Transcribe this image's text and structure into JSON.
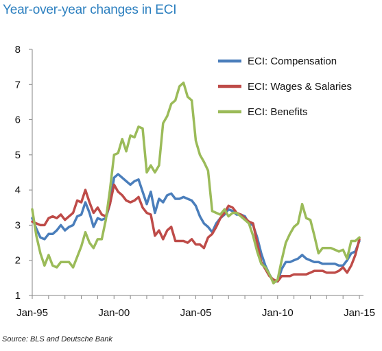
{
  "chart_data": {
    "type": "line",
    "title": "Year-over-year changes in ECI",
    "xlabel": "",
    "ylabel": "",
    "source": "Source: BLS and Deutsche Bank",
    "x_range": [
      "1995-01",
      "2015-04"
    ],
    "ylim": [
      1,
      8
    ],
    "y_ticks": [
      "1",
      "2",
      "3",
      "4",
      "5",
      "6",
      "7",
      "8"
    ],
    "x_ticks": [
      {
        "label": "Jan-95",
        "t": "1995-01"
      },
      {
        "label": "Jan-00",
        "t": "2000-01"
      },
      {
        "label": "Jan-05",
        "t": "2005-01"
      },
      {
        "label": "Jan-10",
        "t": "2010-01"
      },
      {
        "label": "Jan-15",
        "t": "2015-01"
      }
    ],
    "grid": false,
    "legend_position": "top-right",
    "series": [
      {
        "name": "ECI: Compensation",
        "color": "#4a7ebb",
        "points": [
          [
            "1995-01",
            3.2
          ],
          [
            "1995-04",
            2.9
          ],
          [
            "1995-07",
            2.65
          ],
          [
            "1995-10",
            2.6
          ],
          [
            "1996-01",
            2.75
          ],
          [
            "1996-04",
            2.75
          ],
          [
            "1996-07",
            2.85
          ],
          [
            "1996-10",
            3.0
          ],
          [
            "1997-01",
            2.85
          ],
          [
            "1997-04",
            2.95
          ],
          [
            "1997-07",
            3.0
          ],
          [
            "1997-10",
            3.25
          ],
          [
            "1998-01",
            3.3
          ],
          [
            "1998-04",
            3.65
          ],
          [
            "1998-07",
            3.35
          ],
          [
            "1998-10",
            2.95
          ],
          [
            "1999-01",
            3.2
          ],
          [
            "1999-04",
            3.15
          ],
          [
            "1999-07",
            3.2
          ],
          [
            "1999-10",
            3.6
          ],
          [
            "2000-01",
            4.35
          ],
          [
            "2000-04",
            4.45
          ],
          [
            "2000-07",
            4.35
          ],
          [
            "2000-10",
            4.25
          ],
          [
            "2001-01",
            4.15
          ],
          [
            "2001-04",
            4.25
          ],
          [
            "2001-07",
            4.3
          ],
          [
            "2001-10",
            3.95
          ],
          [
            "2002-01",
            3.6
          ],
          [
            "2002-04",
            3.95
          ],
          [
            "2002-07",
            3.35
          ],
          [
            "2002-10",
            3.75
          ],
          [
            "2003-01",
            3.65
          ],
          [
            "2003-04",
            3.85
          ],
          [
            "2003-07",
            3.9
          ],
          [
            "2003-10",
            3.75
          ],
          [
            "2004-01",
            3.75
          ],
          [
            "2004-04",
            3.8
          ],
          [
            "2004-07",
            3.75
          ],
          [
            "2004-10",
            3.7
          ],
          [
            "2005-01",
            3.55
          ],
          [
            "2005-04",
            3.25
          ],
          [
            "2005-07",
            3.05
          ],
          [
            "2005-10",
            2.95
          ],
          [
            "2006-01",
            2.8
          ],
          [
            "2006-04",
            3.05
          ],
          [
            "2006-07",
            3.2
          ],
          [
            "2006-10",
            3.3
          ],
          [
            "2007-01",
            3.45
          ],
          [
            "2007-04",
            3.4
          ],
          [
            "2007-07",
            3.3
          ],
          [
            "2007-10",
            3.3
          ],
          [
            "2008-01",
            3.25
          ],
          [
            "2008-04",
            3.05
          ],
          [
            "2008-07",
            3.0
          ],
          [
            "2008-10",
            2.65
          ],
          [
            "2009-01",
            2.2
          ],
          [
            "2009-04",
            1.85
          ],
          [
            "2009-07",
            1.6
          ],
          [
            "2009-10",
            1.4
          ],
          [
            "2010-01",
            1.4
          ],
          [
            "2010-04",
            1.75
          ],
          [
            "2010-07",
            1.95
          ],
          [
            "2010-10",
            1.95
          ],
          [
            "2011-01",
            2.0
          ],
          [
            "2011-04",
            2.05
          ],
          [
            "2011-07",
            2.15
          ],
          [
            "2011-10",
            2.05
          ],
          [
            "2012-01",
            2.0
          ],
          [
            "2012-04",
            1.95
          ],
          [
            "2012-07",
            1.95
          ],
          [
            "2012-10",
            1.9
          ],
          [
            "2013-01",
            1.9
          ],
          [
            "2013-04",
            1.9
          ],
          [
            "2013-07",
            1.9
          ],
          [
            "2013-10",
            1.85
          ],
          [
            "2014-01",
            1.85
          ],
          [
            "2014-04",
            2.0
          ],
          [
            "2014-07",
            2.2
          ],
          [
            "2014-10",
            2.25
          ],
          [
            "2015-01",
            2.55
          ]
        ]
      },
      {
        "name": "ECI: Wages & Salaries",
        "color": "#be4b48",
        "points": [
          [
            "1995-01",
            3.1
          ],
          [
            "1995-04",
            3.05
          ],
          [
            "1995-07",
            3.0
          ],
          [
            "1995-10",
            3.0
          ],
          [
            "1996-01",
            3.2
          ],
          [
            "1996-04",
            3.25
          ],
          [
            "1996-07",
            3.2
          ],
          [
            "1996-10",
            3.3
          ],
          [
            "1997-01",
            3.15
          ],
          [
            "1997-04",
            3.25
          ],
          [
            "1997-07",
            3.35
          ],
          [
            "1997-10",
            3.7
          ],
          [
            "1998-01",
            3.65
          ],
          [
            "1998-04",
            4.0
          ],
          [
            "1998-07",
            3.65
          ],
          [
            "1998-10",
            3.35
          ],
          [
            "1999-01",
            3.5
          ],
          [
            "1999-04",
            3.3
          ],
          [
            "1999-07",
            3.25
          ],
          [
            "1999-10",
            3.6
          ],
          [
            "2000-01",
            4.15
          ],
          [
            "2000-04",
            3.95
          ],
          [
            "2000-07",
            3.85
          ],
          [
            "2000-10",
            3.7
          ],
          [
            "2001-01",
            3.65
          ],
          [
            "2001-04",
            3.7
          ],
          [
            "2001-07",
            3.8
          ],
          [
            "2001-10",
            3.5
          ],
          [
            "2002-01",
            3.35
          ],
          [
            "2002-04",
            3.3
          ],
          [
            "2002-07",
            2.7
          ],
          [
            "2002-10",
            2.85
          ],
          [
            "2003-01",
            2.6
          ],
          [
            "2003-04",
            2.85
          ],
          [
            "2003-07",
            2.95
          ],
          [
            "2003-10",
            2.55
          ],
          [
            "2004-01",
            2.55
          ],
          [
            "2004-04",
            2.55
          ],
          [
            "2004-07",
            2.5
          ],
          [
            "2004-10",
            2.6
          ],
          [
            "2005-01",
            2.45
          ],
          [
            "2005-04",
            2.45
          ],
          [
            "2005-07",
            2.35
          ],
          [
            "2005-10",
            2.65
          ],
          [
            "2006-01",
            2.75
          ],
          [
            "2006-04",
            2.95
          ],
          [
            "2006-07",
            3.2
          ],
          [
            "2006-10",
            3.35
          ],
          [
            "2007-01",
            3.55
          ],
          [
            "2007-04",
            3.5
          ],
          [
            "2007-07",
            3.35
          ],
          [
            "2007-10",
            3.3
          ],
          [
            "2008-01",
            3.2
          ],
          [
            "2008-04",
            3.1
          ],
          [
            "2008-07",
            3.05
          ],
          [
            "2008-10",
            2.5
          ],
          [
            "2009-01",
            1.95
          ],
          [
            "2009-04",
            1.75
          ],
          [
            "2009-07",
            1.55
          ],
          [
            "2009-10",
            1.45
          ],
          [
            "2010-01",
            1.4
          ],
          [
            "2010-04",
            1.55
          ],
          [
            "2010-07",
            1.55
          ],
          [
            "2010-10",
            1.55
          ],
          [
            "2011-01",
            1.6
          ],
          [
            "2011-04",
            1.6
          ],
          [
            "2011-07",
            1.6
          ],
          [
            "2011-10",
            1.6
          ],
          [
            "2012-01",
            1.65
          ],
          [
            "2012-04",
            1.7
          ],
          [
            "2012-07",
            1.7
          ],
          [
            "2012-10",
            1.7
          ],
          [
            "2013-01",
            1.65
          ],
          [
            "2013-04",
            1.65
          ],
          [
            "2013-07",
            1.65
          ],
          [
            "2013-10",
            1.7
          ],
          [
            "2014-01",
            1.8
          ],
          [
            "2014-04",
            1.65
          ],
          [
            "2014-07",
            1.85
          ],
          [
            "2014-10",
            2.15
          ],
          [
            "2015-01",
            2.6
          ]
        ]
      },
      {
        "name": "ECI: Benefits",
        "color": "#9bbb59",
        "points": [
          [
            "1995-01",
            3.45
          ],
          [
            "1995-04",
            2.7
          ],
          [
            "1995-07",
            2.2
          ],
          [
            "1995-10",
            1.85
          ],
          [
            "1996-01",
            2.15
          ],
          [
            "1996-04",
            1.85
          ],
          [
            "1996-07",
            1.8
          ],
          [
            "1996-10",
            1.95
          ],
          [
            "1997-01",
            1.95
          ],
          [
            "1997-04",
            1.95
          ],
          [
            "1997-07",
            1.8
          ],
          [
            "1997-10",
            2.1
          ],
          [
            "1998-01",
            2.4
          ],
          [
            "1998-04",
            2.8
          ],
          [
            "1998-07",
            2.5
          ],
          [
            "1998-10",
            2.35
          ],
          [
            "1999-01",
            2.6
          ],
          [
            "1999-04",
            2.6
          ],
          [
            "1999-07",
            3.15
          ],
          [
            "1999-10",
            4.0
          ],
          [
            "2000-01",
            5.0
          ],
          [
            "2000-04",
            5.05
          ],
          [
            "2000-07",
            5.45
          ],
          [
            "2000-10",
            5.1
          ],
          [
            "2001-01",
            5.55
          ],
          [
            "2001-04",
            5.5
          ],
          [
            "2001-07",
            5.8
          ],
          [
            "2001-10",
            5.75
          ],
          [
            "2002-01",
            4.5
          ],
          [
            "2002-04",
            4.7
          ],
          [
            "2002-07",
            4.5
          ],
          [
            "2002-10",
            4.7
          ],
          [
            "2003-01",
            5.9
          ],
          [
            "2003-04",
            6.1
          ],
          [
            "2003-07",
            6.45
          ],
          [
            "2003-10",
            6.55
          ],
          [
            "2004-01",
            6.95
          ],
          [
            "2004-04",
            7.05
          ],
          [
            "2004-07",
            6.65
          ],
          [
            "2004-10",
            6.55
          ],
          [
            "2005-01",
            5.4
          ],
          [
            "2005-04",
            5.0
          ],
          [
            "2005-07",
            4.8
          ],
          [
            "2005-10",
            4.55
          ],
          [
            "2006-01",
            3.4
          ],
          [
            "2006-04",
            3.35
          ],
          [
            "2006-07",
            3.3
          ],
          [
            "2006-10",
            3.45
          ],
          [
            "2007-01",
            3.25
          ],
          [
            "2007-04",
            3.35
          ],
          [
            "2007-07",
            3.35
          ],
          [
            "2007-10",
            3.25
          ],
          [
            "2008-01",
            3.15
          ],
          [
            "2008-04",
            3.05
          ],
          [
            "2008-07",
            2.7
          ],
          [
            "2008-10",
            2.25
          ],
          [
            "2009-01",
            1.9
          ],
          [
            "2009-04",
            1.8
          ],
          [
            "2009-07",
            1.6
          ],
          [
            "2009-10",
            1.35
          ],
          [
            "2010-01",
            1.45
          ],
          [
            "2010-04",
            2.0
          ],
          [
            "2010-07",
            2.5
          ],
          [
            "2010-10",
            2.75
          ],
          [
            "2011-01",
            2.95
          ],
          [
            "2011-04",
            3.05
          ],
          [
            "2011-07",
            3.6
          ],
          [
            "2011-10",
            3.2
          ],
          [
            "2012-01",
            3.15
          ],
          [
            "2012-04",
            2.7
          ],
          [
            "2012-07",
            2.2
          ],
          [
            "2012-10",
            2.35
          ],
          [
            "2013-01",
            2.35
          ],
          [
            "2013-04",
            2.35
          ],
          [
            "2013-07",
            2.3
          ],
          [
            "2013-10",
            2.25
          ],
          [
            "2014-01",
            2.3
          ],
          [
            "2014-04",
            2.05
          ],
          [
            "2014-07",
            2.55
          ],
          [
            "2014-10",
            2.55
          ],
          [
            "2015-01",
            2.65
          ]
        ]
      }
    ]
  }
}
